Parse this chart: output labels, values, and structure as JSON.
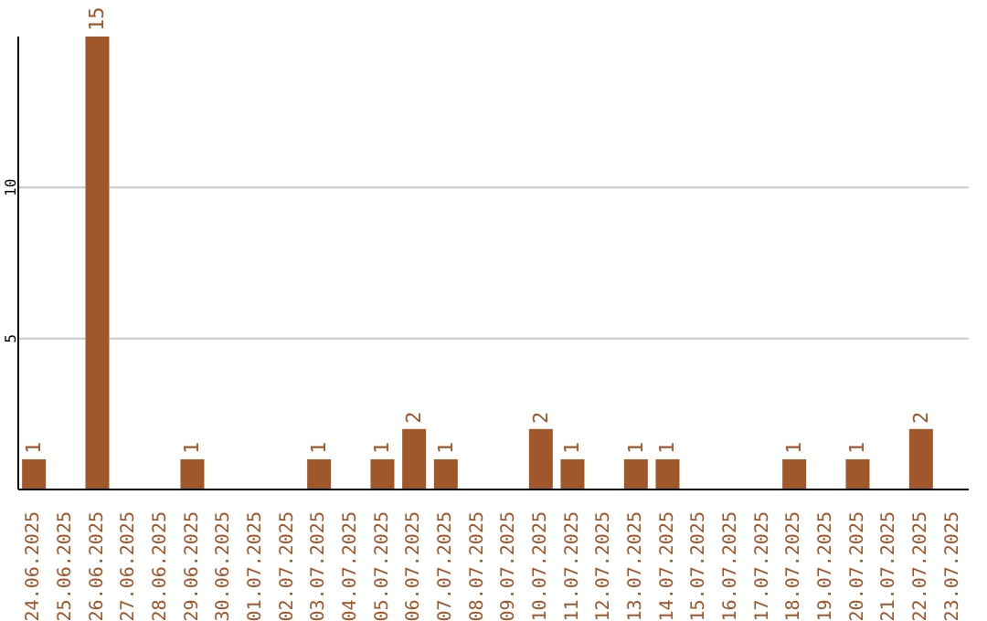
{
  "chart_data": {
    "type": "bar",
    "categories": [
      "24.06.2025",
      "25.06.2025",
      "26.06.2025",
      "27.06.2025",
      "28.06.2025",
      "29.06.2025",
      "30.06.2025",
      "01.07.2025",
      "02.07.2025",
      "03.07.2025",
      "04.07.2025",
      "05.07.2025",
      "06.07.2025",
      "07.07.2025",
      "08.07.2025",
      "09.07.2025",
      "10.07.2025",
      "11.07.2025",
      "12.07.2025",
      "13.07.2025",
      "14.07.2025",
      "15.07.2025",
      "16.07.2025",
      "17.07.2025",
      "18.07.2025",
      "19.07.2025",
      "20.07.2025",
      "21.07.2025",
      "22.07.2025",
      "23.07.2025"
    ],
    "series": [
      {
        "color": "#a0572a",
        "values": [
          1,
          0,
          15,
          0,
          0,
          1,
          0,
          0,
          0,
          1,
          0,
          1,
          2,
          1,
          0,
          0,
          2,
          1,
          0,
          1,
          1,
          0,
          0,
          0,
          1,
          0,
          1,
          0,
          2,
          0
        ]
      }
    ],
    "value_labels": [
      "1",
      null,
      "15",
      null,
      null,
      "1",
      null,
      null,
      null,
      "1",
      null,
      "1",
      "2",
      "1",
      null,
      null,
      "2",
      "1",
      null,
      "1",
      "1",
      null,
      null,
      null,
      "1",
      null,
      "1",
      null,
      "2",
      null
    ],
    "ylim": [
      0,
      15
    ],
    "yticks": [
      5,
      10
    ],
    "grid": "y"
  }
}
